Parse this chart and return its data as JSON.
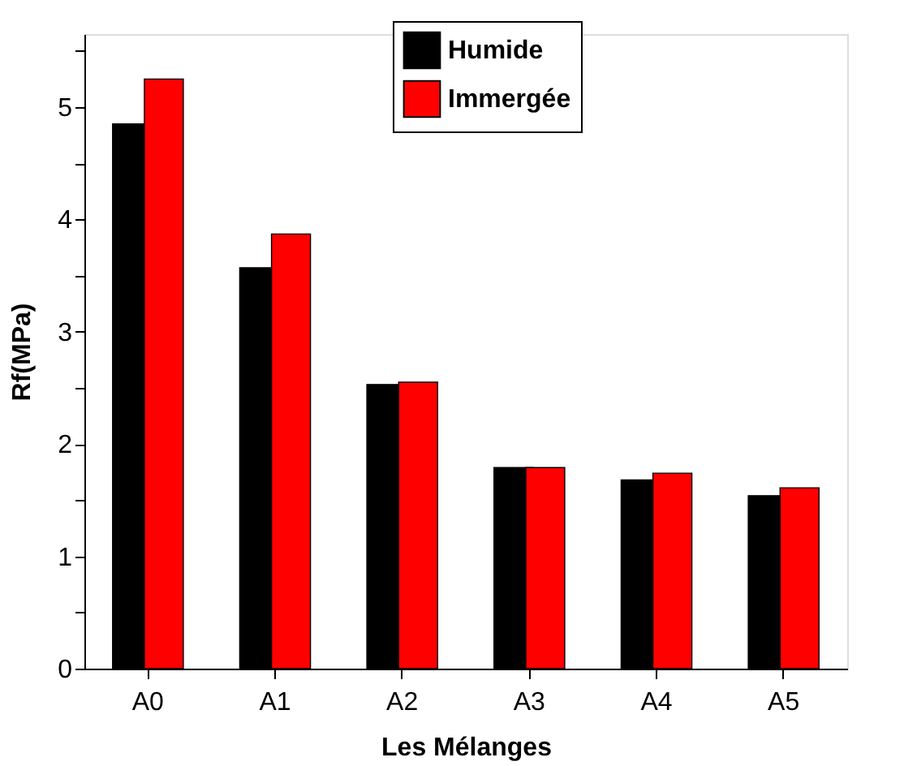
{
  "chart_data": {
    "type": "bar",
    "xlabel": "Les Mélanges",
    "ylabel": "Rf(MPa)",
    "categories": [
      "A0",
      "A1",
      "A2",
      "A3",
      "A4",
      "A5"
    ],
    "series": [
      {
        "name": "Humide",
        "color": "#000000",
        "values": [
          4.85,
          3.57,
          2.53,
          1.79,
          1.68,
          1.54
        ]
      },
      {
        "name": "Immergée",
        "color": "#ff0000",
        "values": [
          5.25,
          3.87,
          2.55,
          1.79,
          1.74,
          1.61
        ]
      }
    ],
    "ylim": [
      0,
      5.65
    ],
    "yticks": [
      0,
      {
        "value": 0.5,
        "label": null
      },
      1,
      {
        "value": 1.5,
        "label": null
      },
      2,
      {
        "value": 2.5,
        "label": null
      },
      3,
      {
        "value": 3.5,
        "label": null
      },
      4,
      {
        "value": 4.5,
        "label": null
      },
      5,
      {
        "value": 5.5,
        "label": null
      }
    ],
    "grid": false,
    "legend": "top right"
  }
}
